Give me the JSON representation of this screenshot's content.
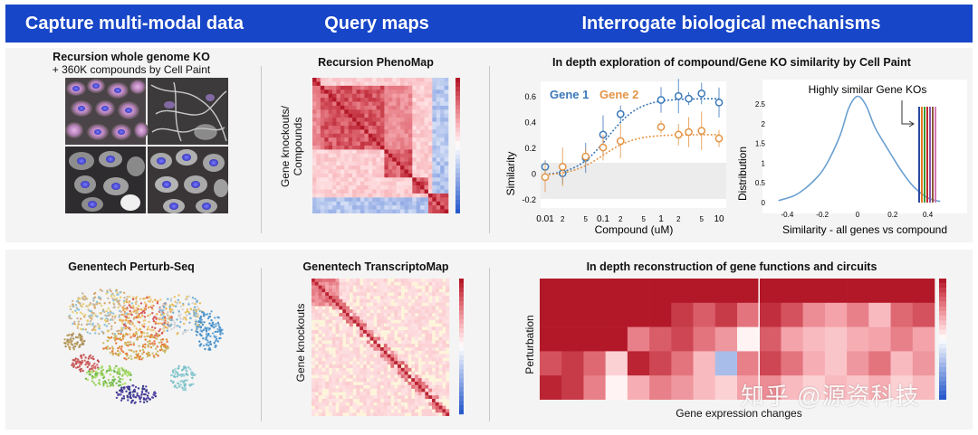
{
  "header": {
    "col1": "Capture multi-modal data",
    "col2": "Query maps",
    "col3": "Interrogate biological mechanisms"
  },
  "row1": {
    "data_title": "Recursion whole genome KO",
    "data_subtitle": "+ 360K compounds by Cell Paint",
    "map_title": "Recursion PhenoMap",
    "map_ylabel_line1": "Gene knockouts/",
    "map_ylabel_line2": "Compounds",
    "mech_title": "In depth exploration of compound/Gene KO similarity by Cell Paint",
    "dose_chart": {
      "legend_gene1": "Gene 1",
      "legend_gene2": "Gene 2",
      "xlabel": "Compound (uM)",
      "ylabel": "Similarity",
      "yticks": [
        "0.6",
        "0.4",
        "0.2",
        "0",
        "-0.2"
      ],
      "xticks": [
        "0.01",
        "2",
        "5",
        "0.1",
        "2",
        "5",
        "1",
        "2",
        "5",
        "10"
      ]
    },
    "dist_chart": {
      "annotation": "Highly similar Gene KOs",
      "xlabel": "Similarity - all genes vs compound",
      "ylabel": "Distribution",
      "yticks": [
        "2.5",
        "2",
        "1.5",
        "1",
        "0.5",
        "0"
      ],
      "xticks": [
        "-0.4",
        "-0.2",
        "0",
        "0.2",
        "0.4"
      ]
    }
  },
  "row2": {
    "data_title": "Genentech Perturb-Seq",
    "map_title": "Genentech TranscriptoMap",
    "map_ylabel": "Gene knockouts",
    "mech_title": "In depth reconstruction of gene functions and circuits",
    "heatmap_xlabel": "Gene expression changes",
    "heatmap_ylabel": "Perturbation"
  },
  "watermark": "知乎 @源资科技",
  "colors": {
    "header_blue": "#1846c8",
    "gene1_blue": "#3a78b8",
    "gene2_orange": "#e39446",
    "heat_red": "#b2121e",
    "dist_line": "#6a9fd0"
  },
  "chart_data": [
    {
      "type": "scatter",
      "ylim": [
        -0.2,
        0.7
      ],
      "series": [
        {
          "name": "Gene 1",
          "x": [
            0.01,
            0.02,
            0.05,
            0.1,
            0.2,
            1,
            2,
            3,
            5,
            10
          ],
          "y": [
            0.05,
            0.0,
            0.12,
            0.3,
            0.46,
            0.57,
            0.6,
            0.58,
            0.62,
            0.55
          ]
        },
        {
          "name": "Gene 2",
          "x": [
            0.01,
            0.02,
            0.05,
            0.1,
            0.2,
            1,
            2,
            3,
            5,
            10
          ],
          "y": [
            -0.03,
            0.05,
            0.13,
            0.2,
            0.25,
            0.36,
            0.3,
            0.32,
            0.33,
            0.27
          ]
        }
      ]
    },
    {
      "type": "line",
      "xlim": [
        -0.5,
        0.5
      ],
      "ylim": [
        0,
        2.8
      ],
      "x": [
        -0.45,
        -0.35,
        -0.25,
        -0.18,
        -0.1,
        -0.05,
        0.0,
        0.05,
        0.1,
        0.18,
        0.25,
        0.32,
        0.4,
        0.47
      ],
      "y": [
        0.05,
        0.2,
        0.55,
        0.95,
        1.7,
        2.4,
        2.7,
        2.45,
        1.9,
        1.3,
        0.8,
        0.4,
        0.12,
        0.03
      ]
    }
  ]
}
